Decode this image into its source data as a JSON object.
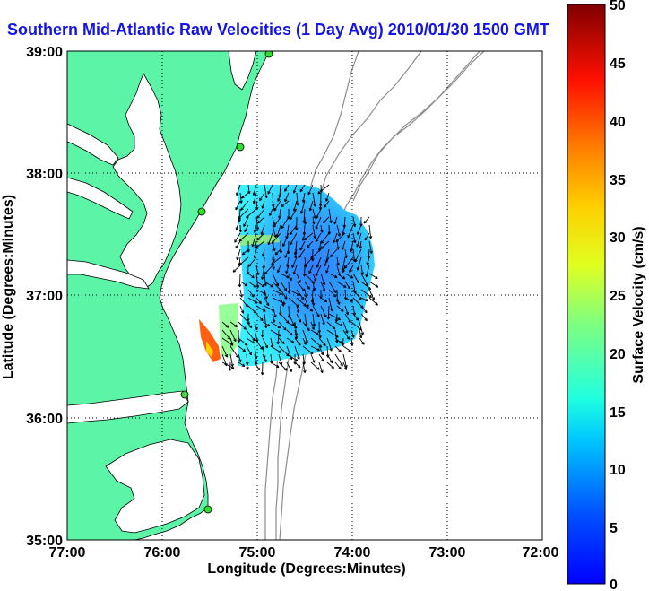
{
  "title": "Southern Mid-Atlantic Raw Velocities (1 Day Avg) 2010/01/30 1500 GMT",
  "x_axis": {
    "label": "Longitude (Degrees:Minutes)",
    "ticks": [
      "77:00",
      "76:00",
      "75:00",
      "74:00",
      "73:00",
      "72:00"
    ]
  },
  "y_axis": {
    "label": "Latitude (Degrees:Minutes)",
    "ticks": [
      "39:00",
      "38:00",
      "37:00",
      "36:00",
      "35:00"
    ]
  },
  "colorbar": {
    "label": "Surface Velocity (cm/s)",
    "ticks": [
      "50",
      "45",
      "40",
      "35",
      "30",
      "25",
      "20",
      "15",
      "10",
      "5",
      "0"
    ],
    "min": 0,
    "max": 50
  },
  "colors": {
    "land": "#5cf5a8",
    "title": "#1414e6",
    "station": "#33dd33",
    "bathymetry": "#8c8c8c"
  },
  "chart_data": {
    "type": "map",
    "projection": "lon-lat",
    "lon_range": [
      -77,
      -72
    ],
    "lat_range": [
      35,
      39
    ],
    "grid": true,
    "colormap": "jet",
    "velocity_range_cm_s": [
      0,
      50
    ],
    "stations": [
      {
        "lon": -75.12,
        "lat": 39.0
      },
      {
        "lon": -75.08,
        "lat": 38.21
      },
      {
        "lon": -75.55,
        "lat": 37.68
      },
      {
        "lon": -75.72,
        "lat": 36.18
      },
      {
        "lon": -75.47,
        "lat": 35.24
      }
    ]
  }
}
